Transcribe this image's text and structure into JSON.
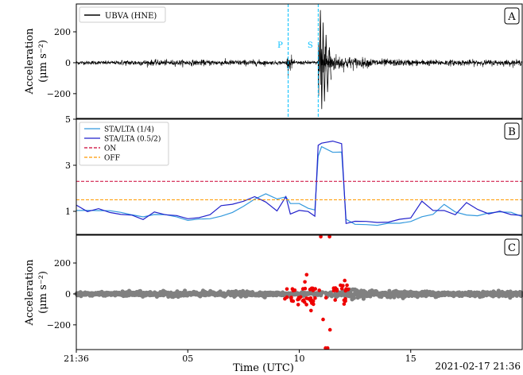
{
  "chart_data": [
    {
      "panel_label": "A",
      "type": "line",
      "ylabel_line1": "Acceleration",
      "ylabel_line2": "(μm s⁻²)",
      "yticks": [
        200,
        0,
        -200
      ],
      "ytick_labels": [
        "200",
        "0",
        "−200"
      ],
      "ylim": [
        -360,
        380
      ],
      "legend": [
        "UBVA (HNE)"
      ],
      "legend_placement": "top-left",
      "phase_markers": [
        {
          "label": "P",
          "x": 9.5
        },
        {
          "label": "S",
          "x": 10.85
        }
      ],
      "color": "#000000",
      "marker_color": "#00bfff"
    },
    {
      "panel_label": "B",
      "type": "line",
      "yticks": [
        5,
        3,
        1
      ],
      "ytick_labels": [
        "5",
        "3",
        "1"
      ],
      "ylim": [
        0,
        5
      ],
      "legend_placement": "top-left",
      "series": [
        {
          "name": "STA/LTA (1/4)",
          "color": "#3399dd",
          "x": [
            0,
            0.5,
            1,
            1.5,
            2,
            2.5,
            3,
            3.5,
            4,
            4.5,
            5,
            5.5,
            6,
            6.5,
            7,
            7.5,
            8,
            8.5,
            9,
            9.4,
            9.6,
            10,
            10.4,
            10.7,
            10.85,
            11,
            11.5,
            11.9,
            12.1,
            12.5,
            13,
            13.5,
            14,
            14.5,
            15,
            15.5,
            16,
            16.5,
            17,
            17.5,
            18,
            18.5,
            19,
            19.5,
            20
          ],
          "y": [
            1.1,
            1.05,
            1.0,
            1.05,
            0.95,
            0.8,
            0.75,
            0.9,
            0.85,
            0.7,
            0.65,
            0.7,
            0.7,
            0.8,
            0.9,
            1.2,
            1.6,
            1.7,
            1.5,
            1.6,
            1.4,
            1.3,
            1.2,
            1.1,
            3.4,
            3.8,
            3.6,
            3.5,
            0.6,
            0.5,
            0.45,
            0.45,
            0.45,
            0.45,
            0.5,
            0.7,
            0.9,
            1.3,
            1.0,
            0.9,
            0.8,
            1.0,
            1.0,
            0.9,
            0.8
          ]
        },
        {
          "name": "STA/LTA (0.5/2)",
          "color": "#2222cc",
          "x": [
            0,
            0.5,
            1,
            1.5,
            2,
            2.5,
            3,
            3.5,
            4,
            4.5,
            5,
            5.5,
            6,
            6.5,
            7,
            7.5,
            8,
            8.5,
            9,
            9.4,
            9.6,
            10,
            10.4,
            10.7,
            10.85,
            11,
            11.5,
            11.9,
            12.1,
            12.5,
            13,
            13.5,
            14,
            14.5,
            15,
            15.5,
            16,
            16.5,
            17,
            17.5,
            18,
            18.5,
            19,
            19.5,
            20
          ],
          "y": [
            1.2,
            1.0,
            1.1,
            1.0,
            0.9,
            0.85,
            0.7,
            0.95,
            0.9,
            0.75,
            0.65,
            0.75,
            0.8,
            1.2,
            1.3,
            1.5,
            1.7,
            1.4,
            1.0,
            1.7,
            0.9,
            1.0,
            1.0,
            0.8,
            3.9,
            4.0,
            4.0,
            4.0,
            0.5,
            0.5,
            0.55,
            0.55,
            0.6,
            0.6,
            0.7,
            1.4,
            1.1,
            1.0,
            0.9,
            1.4,
            1.1,
            0.9,
            1.0,
            0.8,
            0.8
          ]
        },
        {
          "name": "ON",
          "color": "#cc0033",
          "value": 2.3
        },
        {
          "name": "OFF",
          "color": "#ff9900",
          "value": 1.5
        }
      ]
    },
    {
      "panel_label": "C",
      "type": "scatter",
      "ylabel_line1": "Acceleration",
      "ylabel_line2": "(μm s⁻²)",
      "yticks": [
        200,
        0,
        -200
      ],
      "ytick_labels": [
        "200",
        "0",
        "−200"
      ],
      "ylim": [
        -360,
        380
      ],
      "point_color": "#808080",
      "trigger_color": "#ee0000",
      "trigger_window": [
        9.3,
        12.2
      ],
      "xlabel": "Time (UTC)",
      "xticks": [
        0,
        5,
        10,
        15
      ],
      "xtick_labels": [
        "21:36",
        "05",
        "10",
        "15"
      ],
      "xlim": [
        0,
        20
      ],
      "date_label": "2021-02-17  21:36"
    }
  ]
}
